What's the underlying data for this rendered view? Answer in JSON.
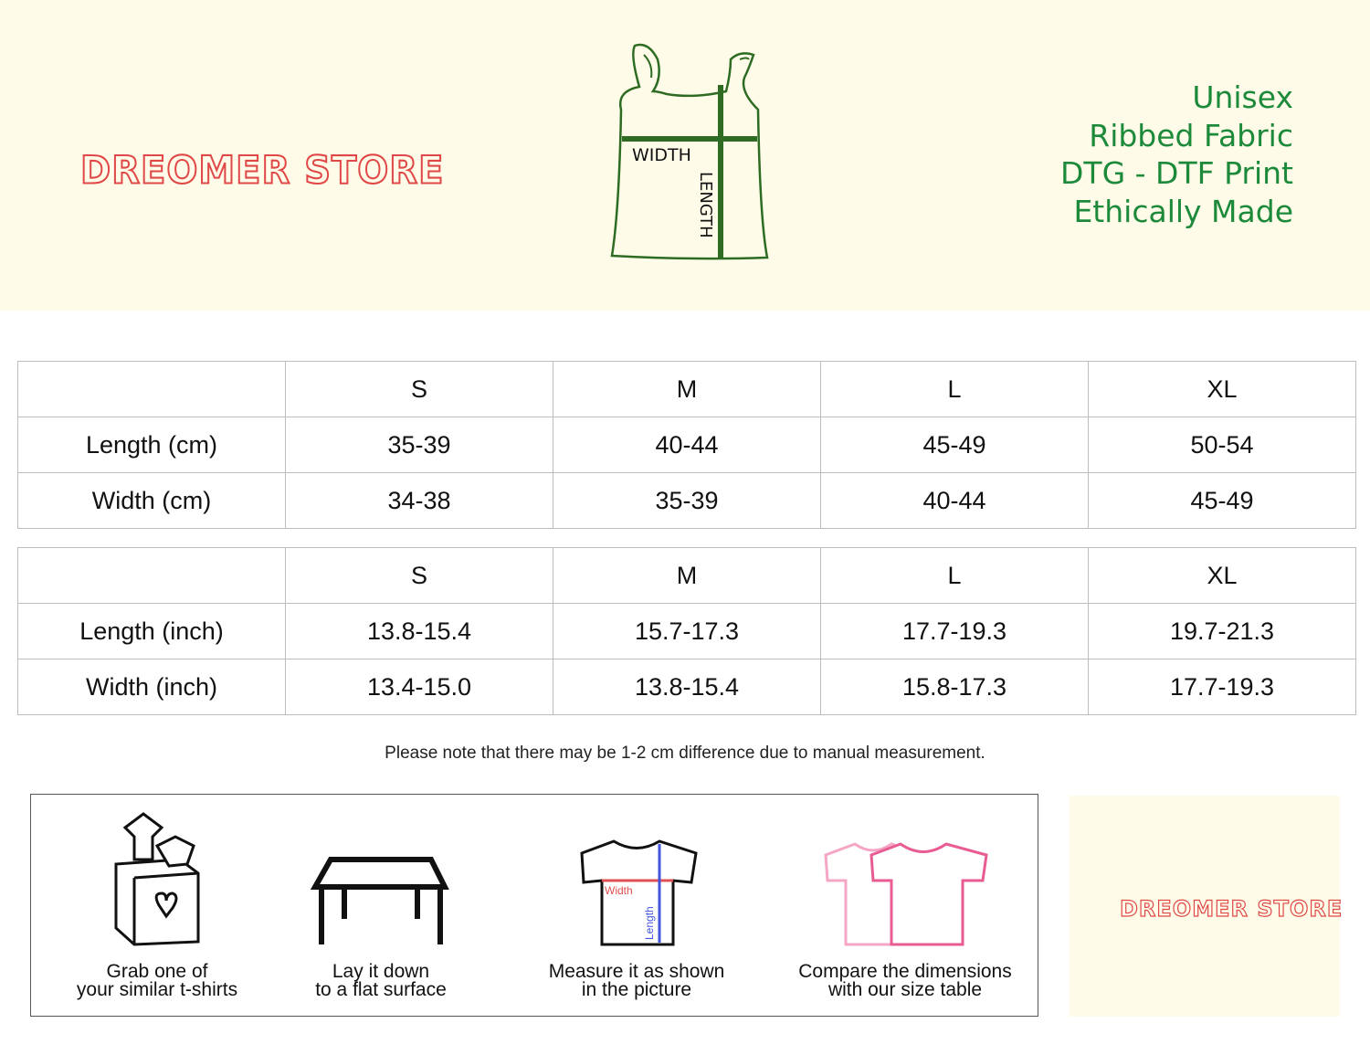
{
  "brand": {
    "logo_text": "DREOMER STORE"
  },
  "diagram": {
    "width_label": "WIDTH",
    "length_label": "LENGTH"
  },
  "tagline": [
    "Unisex",
    "Ribbed Fabric",
    "DTG - DTF Print",
    "Ethically Made"
  ],
  "colors": {
    "hero_bg": "#fefce8",
    "green": "#1d8a3b",
    "logo_red": "#e04848"
  },
  "cm_table": {
    "headers": [
      "",
      "S",
      "M",
      "L",
      "XL"
    ],
    "rows": [
      [
        "Length (cm)",
        "35-39",
        "40-44",
        "45-49",
        "50-54"
      ],
      [
        "Width (cm)",
        "34-38",
        "35-39",
        "40-44",
        "45-49"
      ]
    ]
  },
  "inch_table": {
    "headers": [
      "",
      "S",
      "M",
      "L",
      "XL"
    ],
    "rows": [
      [
        "Length (inch)",
        "13.8-15.4",
        "15.7-17.3",
        "17.7-19.3",
        "19.7-21.3"
      ],
      [
        "Width (inch)",
        "13.4-15.0",
        "13.8-15.4",
        "15.8-17.3",
        "17.7-19.3"
      ]
    ]
  },
  "note": "Please note that there may be 1-2 cm difference due to manual measurement.",
  "steps": [
    {
      "icon": "box-of-clothes-icon",
      "line1": "Grab one of",
      "line2": "your similar t-shirts"
    },
    {
      "icon": "table-icon",
      "line1": "Lay it down",
      "line2": "to a flat surface"
    },
    {
      "icon": "measured-tshirt-icon",
      "line1": "Measure it as shown",
      "line2": "in the picture",
      "width_label": "Width",
      "length_label": "Length"
    },
    {
      "icon": "compare-tshirts-icon",
      "line1": "Compare the dimensions",
      "line2": "with our size table"
    }
  ]
}
